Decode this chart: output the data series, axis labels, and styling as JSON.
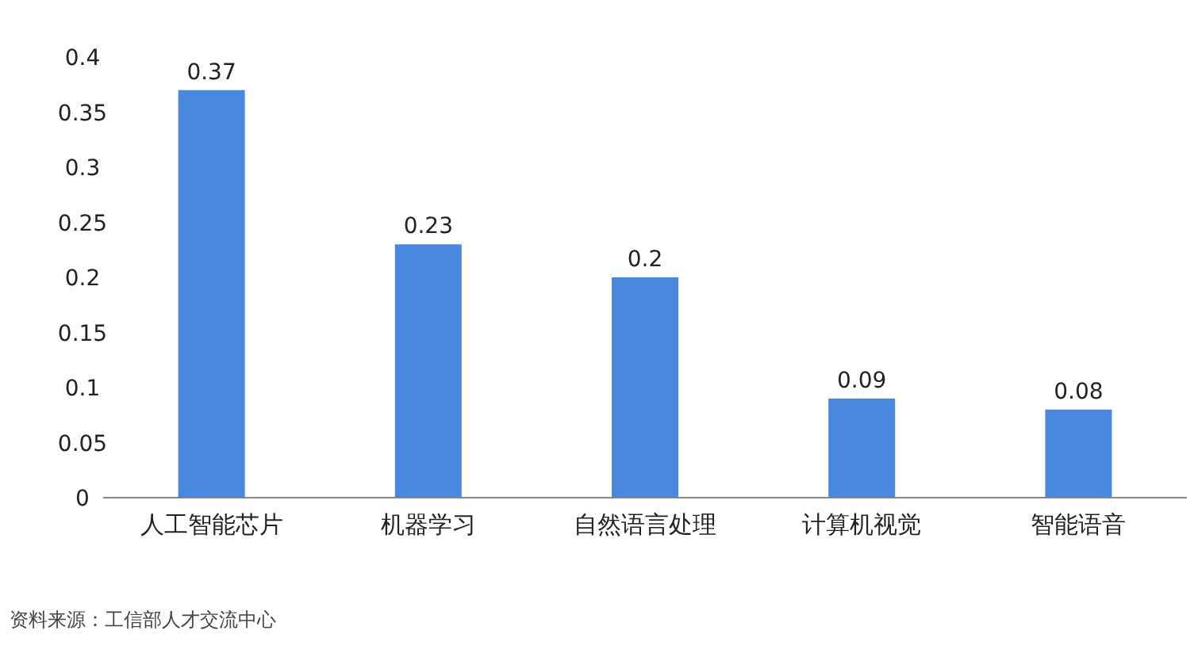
{
  "chart_data": {
    "type": "bar",
    "categories": [
      "人工智能芯片",
      "机器学习",
      "自然语言处理",
      "计算机视觉",
      "智能语音"
    ],
    "values": [
      0.37,
      0.23,
      0.2,
      0.09,
      0.08
    ],
    "color": "#4a88e0",
    "ylim": [
      0,
      0.4
    ],
    "yticks": [
      0,
      0.05,
      0.1,
      0.15,
      0.2,
      0.25,
      0.3,
      0.35,
      0.4
    ],
    "grid": false,
    "data_labels": true,
    "annotations": [
      "资料来源：工信部人才交流中心"
    ]
  }
}
